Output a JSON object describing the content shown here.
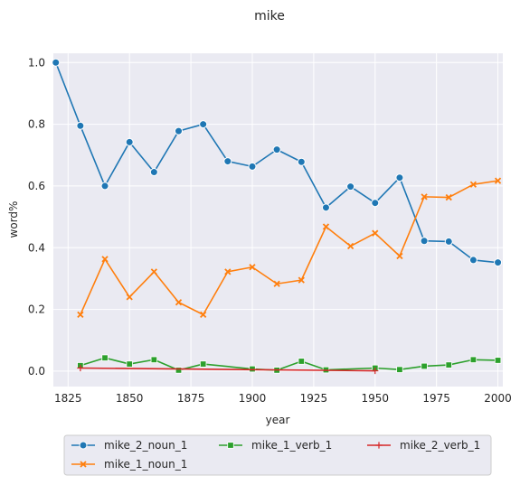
{
  "chart_data": {
    "type": "line",
    "title": "mike",
    "xlabel": "year",
    "ylabel": "word%",
    "xlim": [
      1819,
      2002
    ],
    "ylim": [
      -0.05,
      1.03
    ],
    "xticks": [
      1825,
      1850,
      1875,
      1900,
      1925,
      1950,
      1975,
      2000
    ],
    "yticks": [
      0.0,
      0.2,
      0.4,
      0.6,
      0.8,
      1.0
    ],
    "xtick_labels": [
      "1825",
      "1850",
      "1875",
      "1900",
      "1925",
      "1950",
      "1975",
      "2000"
    ],
    "ytick_labels": [
      "0.0",
      "0.2",
      "0.4",
      "0.6",
      "0.8",
      "1.0"
    ],
    "grid": true,
    "legend_position": "bottom",
    "series": [
      {
        "name": "mike_2_noun_1",
        "color": "#1f77b4",
        "marker": "circle",
        "x": [
          1820,
          1830,
          1840,
          1850,
          1860,
          1870,
          1880,
          1890,
          1900,
          1910,
          1920,
          1930,
          1940,
          1950,
          1960,
          1970,
          1980,
          1990,
          2000
        ],
        "y": [
          1.0,
          0.795,
          0.6,
          0.742,
          0.645,
          0.778,
          0.8,
          0.68,
          0.663,
          0.718,
          0.678,
          0.53,
          0.598,
          0.545,
          0.627,
          0.422,
          0.42,
          0.36,
          0.352
        ]
      },
      {
        "name": "mike_1_noun_1",
        "color": "#ff7f0e",
        "marker": "x",
        "x": [
          1830,
          1840,
          1850,
          1860,
          1870,
          1880,
          1890,
          1900,
          1910,
          1920,
          1930,
          1940,
          1950,
          1960,
          1970,
          1980,
          1990,
          2000
        ],
        "y": [
          0.183,
          0.363,
          0.24,
          0.322,
          0.223,
          0.183,
          0.322,
          0.337,
          0.283,
          0.295,
          0.468,
          0.405,
          0.447,
          0.373,
          0.565,
          0.563,
          0.605,
          0.617
        ]
      },
      {
        "name": "mike_1_verb_1",
        "color": "#2ca02c",
        "marker": "square",
        "x": [
          1830,
          1840,
          1850,
          1860,
          1870,
          1880,
          1900,
          1910,
          1920,
          1930,
          1950,
          1960,
          1970,
          1980,
          1990,
          2000
        ],
        "y": [
          0.018,
          0.043,
          0.023,
          0.037,
          0.003,
          0.023,
          0.007,
          0.003,
          0.032,
          0.004,
          0.01,
          0.005,
          0.016,
          0.02,
          0.037,
          0.035
        ]
      },
      {
        "name": "mike_2_verb_1",
        "color": "#d62728",
        "marker": "plus",
        "x": [
          1830,
          1950
        ],
        "y": [
          0.01,
          0.001
        ]
      }
    ]
  }
}
